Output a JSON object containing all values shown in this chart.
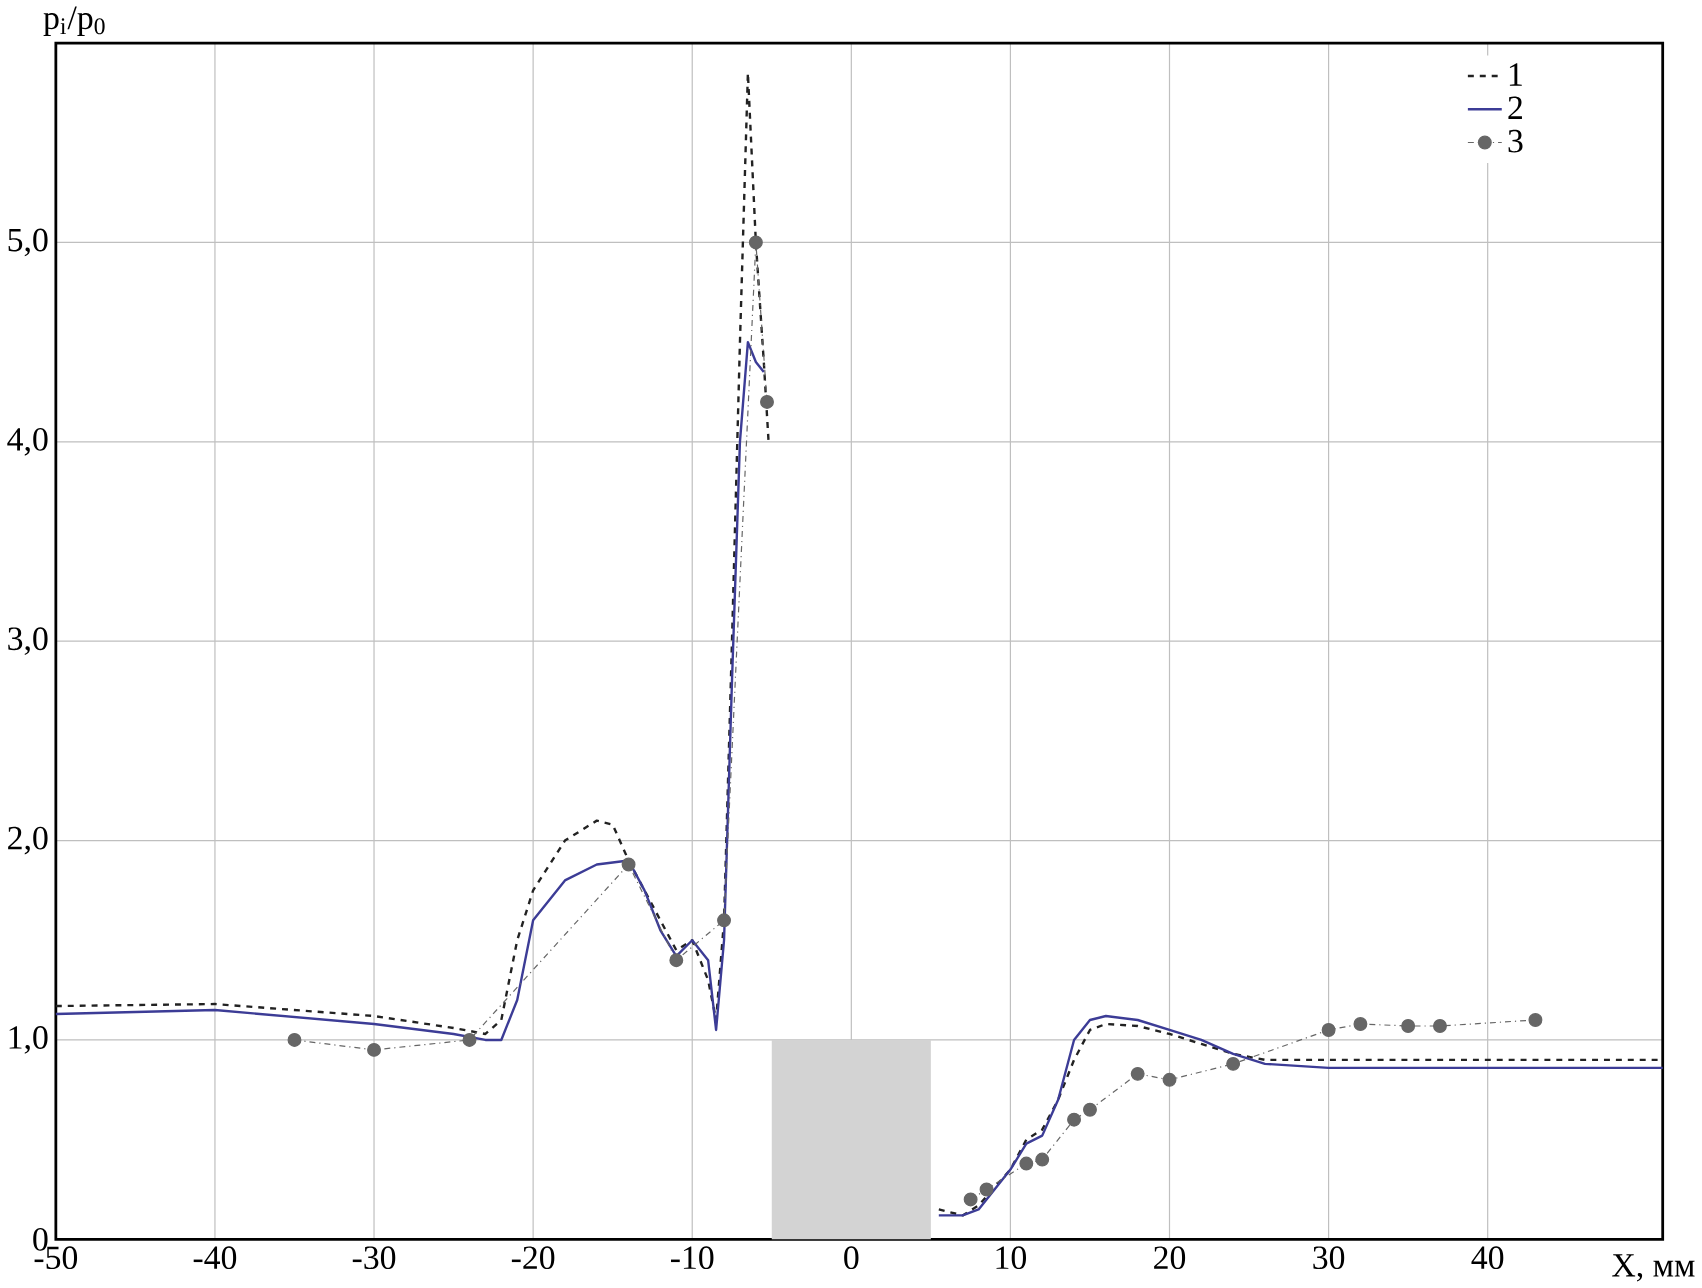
{
  "chart_data": {
    "type": "line",
    "ylabel": "p$_{i}$/p$_{0}$",
    "xlabel": "X, мм",
    "xlim": [
      -50,
      51
    ],
    "ylim": [
      0,
      6
    ],
    "xticks": [
      -50,
      -40,
      -30,
      -20,
      -10,
      0,
      10,
      20,
      30,
      40
    ],
    "yticks": [
      0,
      {
        "value": 1,
        "label": "1,0"
      },
      {
        "value": 2,
        "label": "2,0"
      },
      {
        "value": 3,
        "label": "3,0"
      },
      {
        "value": 4,
        "label": "4,0"
      },
      {
        "value": 5,
        "label": "5,0"
      }
    ],
    "grid": true,
    "legend": "top right",
    "series": [
      {
        "type": "area",
        "color": "#d3d3d3",
        "x": [
          -5,
          5
        ],
        "values": [
          1,
          1
        ]
      },
      {
        "name": "1",
        "color": "#222222",
        "line_style": "dashed",
        "marker": "none",
        "x": [
          -50,
          -40,
          -30,
          -25,
          -23,
          -22,
          -21,
          -20,
          -18,
          -16,
          -15,
          -14,
          -12,
          -11,
          -10,
          -9,
          -8.5,
          -8,
          -7.5,
          -7,
          -6.5,
          -6,
          -5.5,
          -5.2,
          0,
          5.5,
          7,
          8,
          10,
          11,
          12,
          13,
          14,
          15,
          16,
          18,
          20,
          22,
          24,
          26,
          30,
          40,
          51
        ],
        "values": [
          1.17,
          1.18,
          1.12,
          1.06,
          1.03,
          1.1,
          1.5,
          1.75,
          2.0,
          2.1,
          2.08,
          1.9,
          1.6,
          1.45,
          1.5,
          1.3,
          1.1,
          1.6,
          3.0,
          4.5,
          5.85,
          5.0,
          4.4,
          4.0,
          null,
          0.15,
          0.12,
          0.17,
          0.35,
          0.5,
          0.55,
          0.7,
          0.9,
          1.05,
          1.08,
          1.07,
          1.03,
          0.98,
          0.93,
          0.9,
          0.9,
          0.9,
          0.9
        ]
      },
      {
        "name": "2",
        "color": "#3c3c96",
        "line_style": "solid",
        "marker": "none",
        "x": [
          -50,
          -40,
          -30,
          -25,
          -23,
          -22,
          -21,
          -20,
          -18,
          -16,
          -14,
          -13,
          -12,
          -11,
          -10,
          -9,
          -8.5,
          -8,
          -7.5,
          -7,
          -6.5,
          -6,
          -5.5,
          0,
          5.5,
          7,
          8,
          10,
          11,
          12,
          13,
          14,
          15,
          16,
          18,
          20,
          22,
          24,
          26,
          30,
          40,
          51
        ],
        "values": [
          1.13,
          1.15,
          1.08,
          1.03,
          1.0,
          1.0,
          1.2,
          1.6,
          1.8,
          1.88,
          1.9,
          1.75,
          1.55,
          1.42,
          1.5,
          1.4,
          1.05,
          1.5,
          2.8,
          4.0,
          4.5,
          4.4,
          4.35,
          null,
          0.12,
          0.12,
          0.15,
          0.35,
          0.48,
          0.52,
          0.7,
          1.0,
          1.1,
          1.12,
          1.1,
          1.05,
          1.0,
          0.93,
          0.88,
          0.86,
          0.86,
          0.86
        ]
      },
      {
        "name": "3",
        "color": "#666666",
        "line_style": "dotted",
        "marker": "circle",
        "x": [
          -35,
          -30,
          -24,
          -14,
          -11,
          -8,
          -6,
          -5.3,
          0,
          7.5,
          8.5,
          11,
          12,
          14,
          15,
          18,
          20,
          24,
          30,
          32,
          35,
          37,
          43
        ],
        "values": [
          1.0,
          0.95,
          1.0,
          1.88,
          1.4,
          1.6,
          5.0,
          4.2,
          null,
          0.2,
          0.25,
          0.38,
          0.4,
          0.6,
          0.65,
          0.83,
          0.8,
          0.88,
          1.05,
          1.08,
          1.07,
          1.07,
          1.1
        ]
      }
    ]
  }
}
